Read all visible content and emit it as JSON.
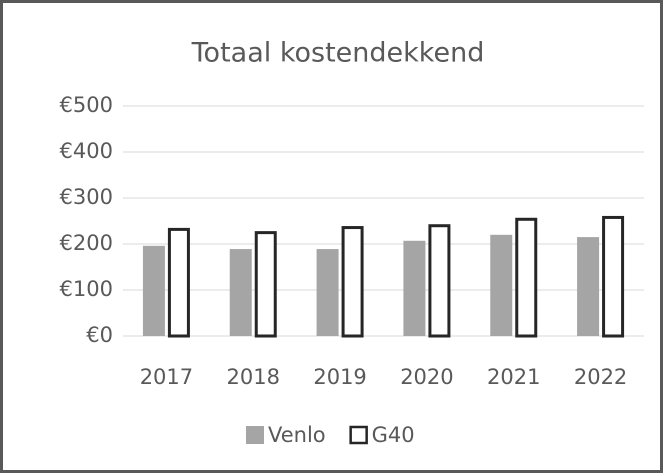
{
  "chart_data": {
    "type": "bar",
    "title": "Totaal kostendekkend",
    "categories": [
      "2017",
      "2018",
      "2019",
      "2020",
      "2021",
      "2022"
    ],
    "series": [
      {
        "name": "Venlo",
        "color": "#a5a5a5",
        "values": [
          196,
          189,
          189,
          207,
          220,
          215
        ]
      },
      {
        "name": "G40",
        "color": "#ffffff",
        "values": [
          235,
          228,
          239,
          243,
          257,
          261
        ]
      }
    ],
    "ylim": [
      0,
      500
    ],
    "yticks": [
      {
        "value": 0,
        "label": "€0"
      },
      {
        "value": 100,
        "label": "€100"
      },
      {
        "value": 200,
        "label": "€200"
      },
      {
        "value": 300,
        "label": "€300"
      },
      {
        "value": 400,
        "label": "€400"
      },
      {
        "value": 500,
        "label": "€500"
      }
    ],
    "grid": true,
    "legend": "bottom"
  }
}
